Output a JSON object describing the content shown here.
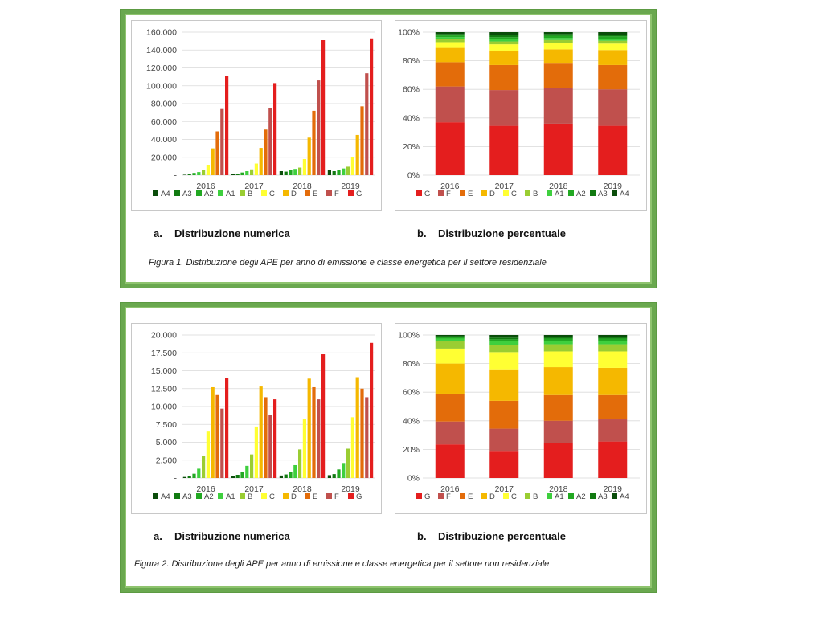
{
  "colors": {
    "G": "#e41e1e",
    "F": "#c0504d",
    "E": "#e36c0a",
    "D": "#f5b800",
    "C": "#ffff33",
    "B": "#9acd32",
    "A1": "#3ecf3e",
    "A2": "#22a822",
    "A3": "#117a11",
    "A4": "#0a4d0a"
  },
  "figure1": {
    "label_a": "Distribuzione numerica",
    "label_a_idx": "a.",
    "label_b": "Distribuzione percentuale",
    "label_b_idx": "b.",
    "caption": "Figura 1. Distribuzione degli APE per anno di emissione e classe energetica per il settore residenziale"
  },
  "figure2": {
    "label_a": "Distribuzione numerica",
    "label_a_idx": "a.",
    "label_b": "Distribuzione percentuale",
    "label_b_idx": "b.",
    "caption": "Figura 2. Distribuzione degli APE per anno di emissione e classe energetica per il settore non residenziale"
  },
  "chart_data": [
    {
      "id": "fig1a",
      "type": "bar",
      "categories": [
        "2016",
        "2017",
        "2018",
        "2019"
      ],
      "ylim": [
        0,
        160000
      ],
      "yticks": [
        "-",
        "20.000",
        "40.000",
        "60.000",
        "80.000",
        "100.000",
        "120.000",
        "140.000",
        "160.000"
      ],
      "ytick_values": [
        0,
        20000,
        40000,
        60000,
        80000,
        100000,
        120000,
        140000,
        160000
      ],
      "legend_position": "bottom",
      "series": [
        {
          "name": "A4",
          "values": [
            500,
            1500,
            4500,
            5500
          ]
        },
        {
          "name": "A3",
          "values": [
            1200,
            1500,
            4000,
            4500
          ]
        },
        {
          "name": "A2",
          "values": [
            2500,
            3000,
            5500,
            5800
          ]
        },
        {
          "name": "A1",
          "values": [
            3500,
            4500,
            7000,
            7500
          ]
        },
        {
          "name": "B",
          "values": [
            5500,
            6500,
            8500,
            9500
          ]
        },
        {
          "name": "C",
          "values": [
            11000,
            13000,
            18000,
            20000
          ]
        },
        {
          "name": "D",
          "values": [
            30000,
            30500,
            42000,
            45000
          ]
        },
        {
          "name": "E",
          "values": [
            49000,
            51000,
            72000,
            77000
          ]
        },
        {
          "name": "F",
          "values": [
            74000,
            75000,
            106000,
            114000
          ]
        },
        {
          "name": "G",
          "values": [
            111000,
            103000,
            151000,
            153000
          ]
        }
      ]
    },
    {
      "id": "fig1b",
      "type": "bar",
      "stacked": "percent",
      "categories": [
        "2016",
        "2017",
        "2018",
        "2019"
      ],
      "ylim": [
        0,
        100
      ],
      "yticks": [
        "0%",
        "20%",
        "40%",
        "60%",
        "80%",
        "100%"
      ],
      "ytick_values": [
        0,
        20,
        40,
        60,
        80,
        100
      ],
      "legend_position": "bottom",
      "series": [
        {
          "name": "G",
          "values": [
            37,
            34.5,
            36,
            34.5
          ]
        },
        {
          "name": "F",
          "values": [
            25,
            25,
            25,
            25.5
          ]
        },
        {
          "name": "E",
          "values": [
            17,
            17.5,
            17,
            17
          ]
        },
        {
          "name": "D",
          "values": [
            10,
            10,
            10,
            10.5
          ]
        },
        {
          "name": "C",
          "values": [
            4,
            4.5,
            4.5,
            4.5
          ]
        },
        {
          "name": "B",
          "values": [
            2,
            2,
            2,
            2
          ]
        },
        {
          "name": "A1",
          "values": [
            1.5,
            1.5,
            1.5,
            1.5
          ]
        },
        {
          "name": "A2",
          "values": [
            1.2,
            1.5,
            1.5,
            1.5
          ]
        },
        {
          "name": "A3",
          "values": [
            1.0,
            1.3,
            1.2,
            1.3
          ]
        },
        {
          "name": "A4",
          "values": [
            1.3,
            2.2,
            1.3,
            1.7
          ]
        }
      ]
    },
    {
      "id": "fig2a",
      "type": "bar",
      "categories": [
        "2016",
        "2017",
        "2018",
        "2019"
      ],
      "ylim": [
        0,
        20000
      ],
      "yticks": [
        "-",
        "2.500",
        "5.000",
        "7.500",
        "10.000",
        "12.500",
        "15.000",
        "17.500",
        "20.000"
      ],
      "ytick_values": [
        0,
        2500,
        5000,
        7500,
        10000,
        12500,
        15000,
        17500,
        20000
      ],
      "legend_position": "bottom",
      "series": [
        {
          "name": "A4",
          "values": [
            150,
            250,
            350,
            400
          ]
        },
        {
          "name": "A3",
          "values": [
            300,
            450,
            500,
            550
          ]
        },
        {
          "name": "A2",
          "values": [
            600,
            900,
            900,
            1200
          ]
        },
        {
          "name": "A1",
          "values": [
            1300,
            1700,
            1800,
            2100
          ]
        },
        {
          "name": "B",
          "values": [
            3100,
            3300,
            4000,
            4100
          ]
        },
        {
          "name": "C",
          "values": [
            6500,
            7200,
            8300,
            8500
          ]
        },
        {
          "name": "D",
          "values": [
            12700,
            12800,
            13900,
            14100
          ]
        },
        {
          "name": "E",
          "values": [
            11600,
            11300,
            12700,
            12500
          ]
        },
        {
          "name": "F",
          "values": [
            9700,
            8800,
            11000,
            11300
          ]
        },
        {
          "name": "G",
          "values": [
            14000,
            11000,
            17300,
            18900
          ]
        }
      ]
    },
    {
      "id": "fig2b",
      "type": "bar",
      "stacked": "percent",
      "categories": [
        "2016",
        "2017",
        "2018",
        "2019"
      ],
      "ylim": [
        0,
        100
      ],
      "yticks": [
        "0%",
        "20%",
        "40%",
        "60%",
        "80%",
        "100%"
      ],
      "ytick_values": [
        0,
        20,
        40,
        60,
        80,
        100
      ],
      "legend_position": "bottom",
      "series": [
        {
          "name": "G",
          "values": [
            23.5,
            19,
            24.5,
            25.5
          ]
        },
        {
          "name": "F",
          "values": [
            16,
            15.5,
            15.5,
            15.5
          ]
        },
        {
          "name": "E",
          "values": [
            19.5,
            19.5,
            18,
            17
          ]
        },
        {
          "name": "D",
          "values": [
            21,
            22,
            19.5,
            19
          ]
        },
        {
          "name": "C",
          "values": [
            10.5,
            12,
            11,
            11.5
          ]
        },
        {
          "name": "B",
          "values": [
            5,
            5,
            5,
            5
          ]
        },
        {
          "name": "A1",
          "values": [
            2,
            2.5,
            2.5,
            2.5
          ]
        },
        {
          "name": "A2",
          "values": [
            1,
            1.5,
            1.5,
            1.5
          ]
        },
        {
          "name": "A3",
          "values": [
            0.7,
            1.2,
            1,
            1.2
          ]
        },
        {
          "name": "A4",
          "values": [
            0.8,
            1.8,
            1.5,
            1.3
          ]
        }
      ]
    }
  ]
}
